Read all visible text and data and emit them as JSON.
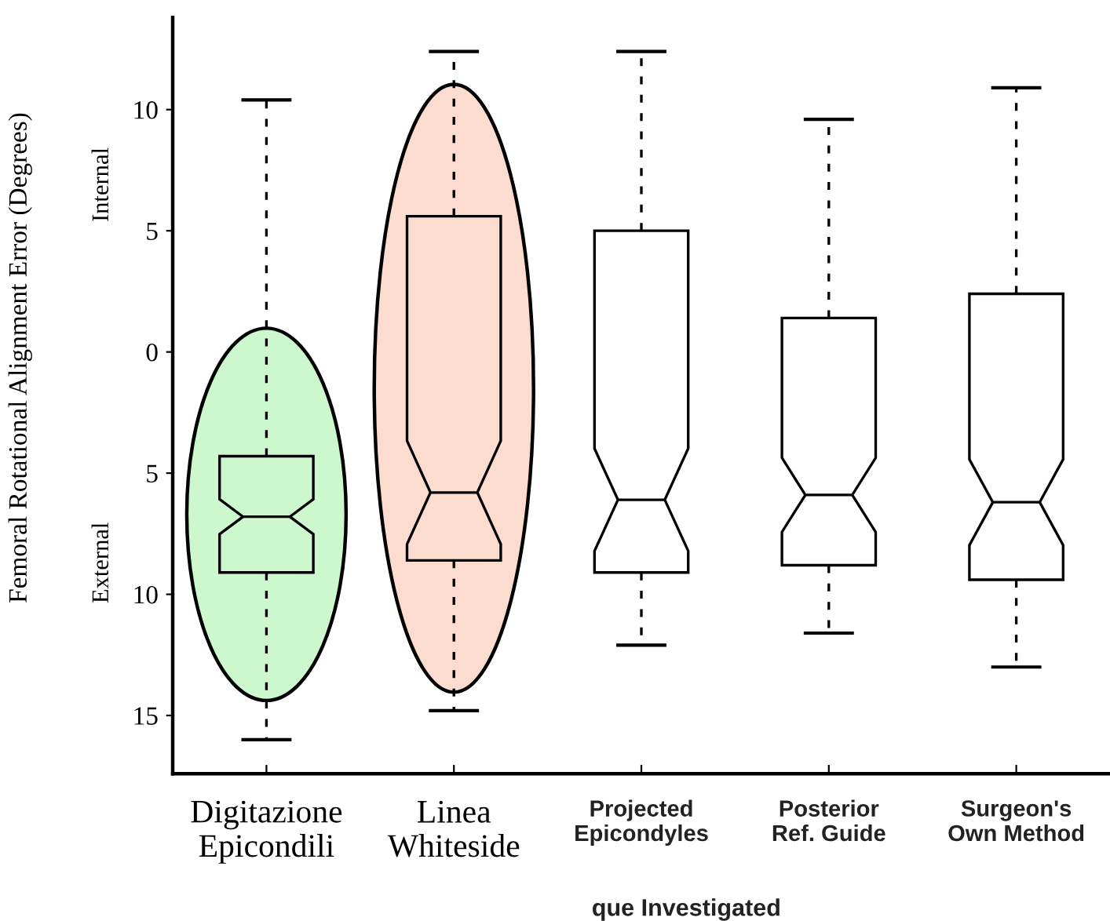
{
  "chart_data": {
    "type": "box",
    "ylabel": "Femoral Rotational Alignment Error (Degrees)",
    "xlabel": "que Investigated",
    "annotations": [
      "Internal",
      "External"
    ],
    "categories": [
      "Digitazione\nEpicondili",
      "Linea\nWhiteside",
      "Projected\nEpicondyles",
      "Posterior\nRef. Guide",
      "Surgeon's\nOwn Method"
    ],
    "boxes": [
      {
        "low": -16.0,
        "q1": -9.1,
        "median": -6.8,
        "q3": -4.3,
        "high": 10.4
      },
      {
        "low": -14.8,
        "q1": -8.6,
        "median": -5.8,
        "q3": 5.6,
        "high": 12.4
      },
      {
        "low": -12.1,
        "q1": -9.1,
        "median": -6.1,
        "q3": 5.0,
        "high": 12.4
      },
      {
        "low": -11.6,
        "q1": -8.8,
        "median": -5.9,
        "q3": 1.4,
        "high": 9.6
      },
      {
        "low": -13.0,
        "q1": -9.4,
        "median": -6.2,
        "q3": 2.4,
        "high": 10.9
      }
    ],
    "colors": [
      "#cdf7cd",
      "#fddcd0",
      null,
      null,
      null
    ],
    "ylim": [
      -17.4,
      13.8
    ],
    "yticks": [
      10,
      5,
      0,
      {
        "value": -5,
        "label": "5"
      },
      {
        "value": -10,
        "label": "10"
      },
      {
        "value": -15,
        "label": "15"
      }
    ]
  }
}
